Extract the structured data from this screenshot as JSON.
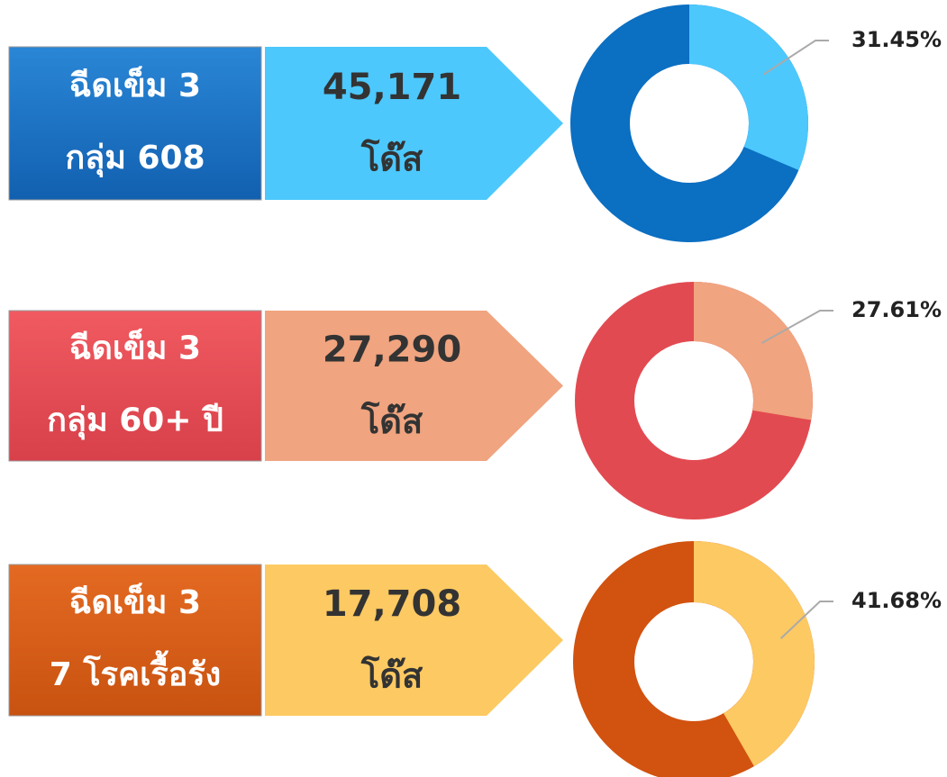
{
  "panels": [
    {
      "label_line1": "ฉีดเข็ม 3",
      "label_line2": "กลุ่ม 608",
      "count": "45,171",
      "unit": "โด๊ส"
    },
    {
      "label_line1": "ฉีดเข็ม 3",
      "label_line2": "กลุ่ม 60+ ปี",
      "count": "27,290",
      "unit": "โด๊ส"
    },
    {
      "label_line1": "ฉีดเข็ม 3",
      "label_line2": "7 โรคเรื้อรัง",
      "count": "17,708",
      "unit": "โด๊ส"
    }
  ],
  "chart_data": [
    {
      "type": "pie",
      "values": [
        31.45
      ],
      "value_labels": [
        "31.45%"
      ],
      "color": "#4cc8fd",
      "base_color": "#0b6fc2"
    },
    {
      "type": "pie",
      "values": [
        27.61
      ],
      "value_labels": [
        "27.61%"
      ],
      "color": "#f0a47f",
      "base_color": "#e24a51"
    },
    {
      "type": "pie",
      "values": [
        41.68
      ],
      "value_labels": [
        "41.68%"
      ],
      "color": "#fdc962",
      "base_color": "#d2520f"
    }
  ]
}
